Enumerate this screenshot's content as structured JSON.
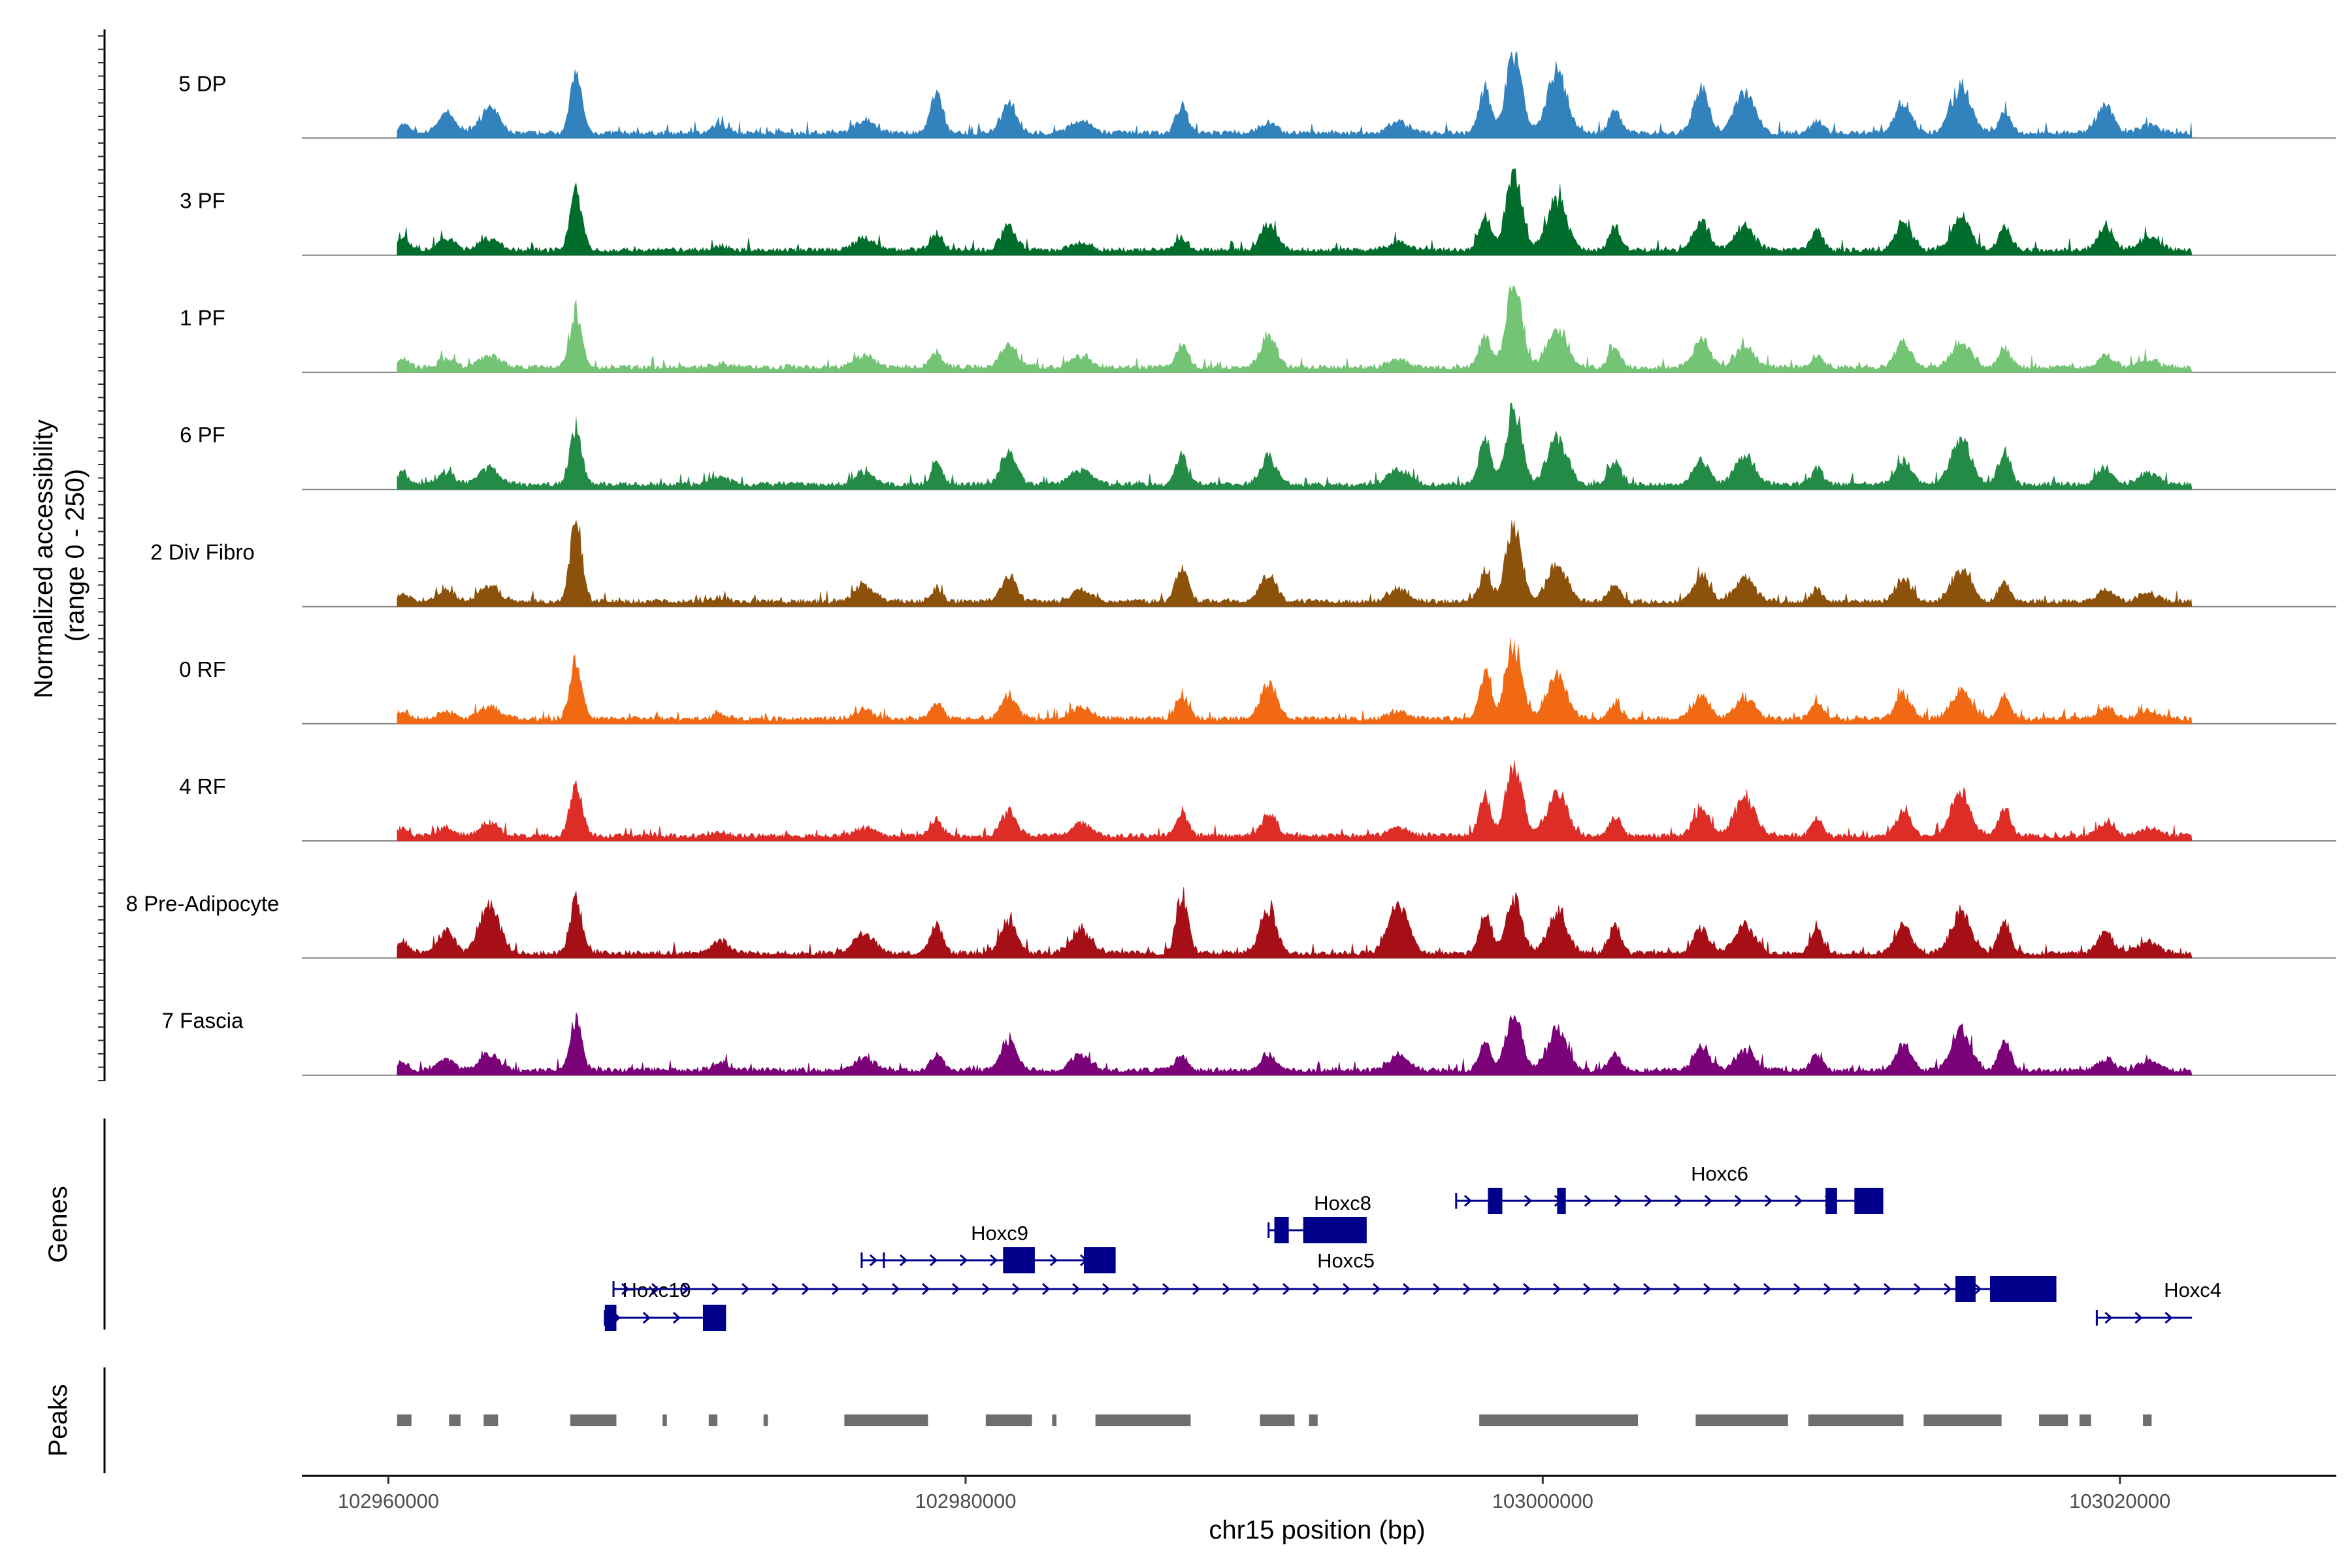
{
  "chart_data": {
    "type": "area",
    "title": "",
    "ylabel": "Normalized accessibility\n(range 0 - 250)",
    "ylabel_lines": [
      "Normalized accessibility",
      "(range 0 - 250)"
    ],
    "ylim": [
      0,
      250
    ],
    "xlabel": "chr15 position (bp)",
    "xlim": [
      102957000,
      103027500
    ],
    "x_ticks": [
      102960000,
      102980000,
      103000000,
      103020000
    ],
    "x_tick_labels": [
      "102960000",
      "102980000",
      "103000000",
      "103020000"
    ],
    "data_extent": [
      102960300,
      103022500
    ],
    "series": [
      {
        "name": "5 DP",
        "color": "#3182bd"
      },
      {
        "name": "3 PF",
        "color": "#006d2c"
      },
      {
        "name": "1 PF",
        "color": "#74c476"
      },
      {
        "name": "6 PF",
        "color": "#238b45"
      },
      {
        "name": "2 Div Fibro",
        "color": "#8c510a"
      },
      {
        "name": "0 RF",
        "color": "#f16913"
      },
      {
        "name": "4 RF",
        "color": "#de2d26"
      },
      {
        "name": "8 Pre-Adipocyte",
        "color": "#a50f15"
      },
      {
        "name": "7 Fascia",
        "color": "#7a0177"
      }
    ],
    "peak_positions": [
      102960500,
      102962000,
      102963500,
      102966500,
      102971500,
      102976500,
      102979000,
      102981500,
      102984000,
      102987500,
      102990500,
      102995000,
      102998000,
      102999000,
      103000500,
      103002500,
      103005500,
      103007000,
      103009500,
      103012500,
      103014500,
      103016000,
      103019500,
      103021000
    ],
    "peak_heights": [
      [
        0.1,
        0.25,
        0.3,
        0.7,
        0.1,
        0.15,
        0.5,
        0.35,
        0.15,
        0.35,
        0.15,
        0.15,
        0.55,
        1.0,
        0.75,
        0.3,
        0.55,
        0.5,
        0.15,
        0.4,
        0.6,
        0.25,
        0.35,
        0.1
      ],
      [
        0.15,
        0.15,
        0.15,
        0.75,
        0.05,
        0.15,
        0.2,
        0.3,
        0.1,
        0.15,
        0.35,
        0.1,
        0.45,
        1.0,
        0.65,
        0.3,
        0.35,
        0.3,
        0.25,
        0.35,
        0.4,
        0.3,
        0.3,
        0.15
      ],
      [
        0.1,
        0.1,
        0.15,
        0.7,
        0.05,
        0.15,
        0.2,
        0.3,
        0.15,
        0.3,
        0.4,
        0.1,
        0.4,
        1.0,
        0.5,
        0.25,
        0.35,
        0.25,
        0.15,
        0.3,
        0.3,
        0.25,
        0.15,
        0.1
      ],
      [
        0.15,
        0.15,
        0.2,
        0.7,
        0.1,
        0.15,
        0.25,
        0.4,
        0.2,
        0.35,
        0.35,
        0.2,
        0.55,
        0.95,
        0.6,
        0.3,
        0.3,
        0.35,
        0.2,
        0.3,
        0.55,
        0.4,
        0.2,
        0.15
      ],
      [
        0.1,
        0.15,
        0.2,
        1.0,
        0.05,
        0.2,
        0.15,
        0.3,
        0.15,
        0.45,
        0.35,
        0.15,
        0.35,
        0.95,
        0.45,
        0.2,
        0.35,
        0.3,
        0.15,
        0.3,
        0.4,
        0.25,
        0.15,
        0.1
      ],
      [
        0.1,
        0.1,
        0.15,
        0.7,
        0.05,
        0.1,
        0.2,
        0.3,
        0.15,
        0.3,
        0.45,
        0.1,
        0.55,
        0.95,
        0.55,
        0.2,
        0.3,
        0.25,
        0.2,
        0.3,
        0.35,
        0.3,
        0.15,
        0.1
      ],
      [
        0.1,
        0.1,
        0.15,
        0.7,
        0.05,
        0.1,
        0.2,
        0.3,
        0.15,
        0.3,
        0.25,
        0.1,
        0.5,
        0.9,
        0.55,
        0.25,
        0.35,
        0.5,
        0.2,
        0.3,
        0.55,
        0.35,
        0.15,
        0.1
      ],
      [
        0.15,
        0.3,
        0.6,
        0.65,
        0.15,
        0.25,
        0.35,
        0.4,
        0.3,
        0.75,
        0.55,
        0.65,
        0.5,
        0.7,
        0.5,
        0.35,
        0.3,
        0.35,
        0.3,
        0.35,
        0.5,
        0.4,
        0.25,
        0.15
      ],
      [
        0.1,
        0.15,
        0.2,
        0.65,
        0.1,
        0.15,
        0.2,
        0.4,
        0.2,
        0.2,
        0.2,
        0.2,
        0.35,
        0.7,
        0.5,
        0.2,
        0.3,
        0.25,
        0.2,
        0.3,
        0.5,
        0.35,
        0.15,
        0.1
      ]
    ],
    "genes_panel_label": "Genes",
    "genes": [
      {
        "name": "Hoxc10",
        "strand": "+",
        "start": 102967500,
        "end": 102971700,
        "row": 3,
        "exons": [
          [
            102967500,
            102967900
          ],
          [
            102970900,
            102971700
          ]
        ]
      },
      {
        "name": "Hoxc5",
        "strand": "+",
        "start": 102967800,
        "end": 103017800,
        "row": 2,
        "exons": [
          [
            103014300,
            103015000
          ],
          [
            103015500,
            103017800
          ]
        ]
      },
      {
        "name": "Hoxc9",
        "strand": "+",
        "start": 102976400,
        "end": 102985200,
        "row": 1,
        "exons": [
          [
            102981300,
            102982400
          ],
          [
            102984100,
            102985200
          ]
        ]
      },
      {
        "name": "Hoxc8",
        "strand": "+",
        "start": 102990500,
        "end": 102993900,
        "row": 0.5,
        "exons": [
          [
            102990700,
            102991200
          ],
          [
            102991700,
            102993900
          ]
        ]
      },
      {
        "name": "Hoxc6",
        "strand": "+",
        "start": 102997000,
        "end": 103011800,
        "row": 0,
        "exons": [
          [
            102998100,
            102998600
          ],
          [
            103000500,
            103000800
          ],
          [
            103009800,
            103010200
          ],
          [
            103010800,
            103011800
          ]
        ]
      },
      {
        "name": "Hoxc4",
        "strand": "+",
        "start": 103019200,
        "end": 103022500,
        "row": 3,
        "exons": []
      }
    ],
    "peaks_panel_label": "Peaks",
    "peaks": [
      [
        102960300,
        102960800
      ],
      [
        102962100,
        102962500
      ],
      [
        102963300,
        102963800
      ],
      [
        102966300,
        102967900
      ],
      [
        102969500,
        102969650
      ],
      [
        102971100,
        102971400
      ],
      [
        102973000,
        102973150
      ],
      [
        102975800,
        102978700
      ],
      [
        102980700,
        102982300
      ],
      [
        102983000,
        102983150
      ],
      [
        102984500,
        102987800
      ],
      [
        102990200,
        102991400
      ],
      [
        102991900,
        102992200
      ],
      [
        102997800,
        103003300
      ],
      [
        103005300,
        103008500
      ],
      [
        103009200,
        103012500
      ],
      [
        103013200,
        103015900
      ],
      [
        103017200,
        103018200
      ],
      [
        103018600,
        103019000
      ],
      [
        103020800,
        103021100
      ]
    ]
  }
}
